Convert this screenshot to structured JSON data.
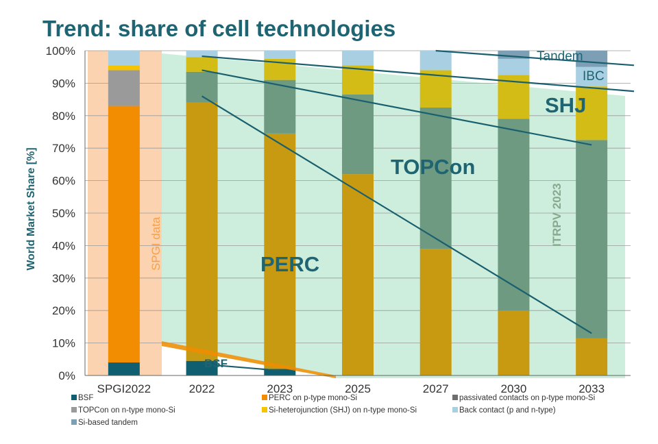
{
  "chart_data": {
    "type": "bar",
    "stacked": true,
    "title": "Trend: share of cell technologies",
    "ylabel": "World Market Share [%]",
    "xlabel": "",
    "ylim": [
      0,
      100
    ],
    "yticks": [
      "0%",
      "10%",
      "20%",
      "30%",
      "40%",
      "50%",
      "60%",
      "70%",
      "80%",
      "90%",
      "100%"
    ],
    "grid": true,
    "legend_position": "bottom",
    "categories": [
      "SPGI2022",
      "2022",
      "2023",
      "2025",
      "2027",
      "2030",
      "2033"
    ],
    "series": [
      {
        "name": "BSF",
        "color": "#0f5f70",
        "values": [
          4,
          4.5,
          2,
          0,
          0,
          0,
          0
        ]
      },
      {
        "name": "PERC on p-type mono-Si",
        "color": "#f28c00",
        "values": [
          79,
          0,
          0,
          0,
          0,
          0,
          0
        ]
      },
      {
        "name": "passivated contacts on p-type mono-Si",
        "color": "#6e6e6e",
        "values": [
          0,
          0,
          0,
          0,
          0,
          0,
          0
        ]
      },
      {
        "name": "TOPCon on n-type mono-Si",
        "color": "#9a9a9a",
        "values": [
          11,
          0,
          0,
          0,
          0,
          0,
          0
        ]
      },
      {
        "name": "Si-heterojunction (SHJ) on n-type mono-Si",
        "color": "#f5c400",
        "values": [
          1.5,
          0,
          0,
          0,
          0,
          0,
          0
        ]
      },
      {
        "name": "Back contact (p and n-type)",
        "color": "#a8cfe2",
        "values": [
          4.5,
          0,
          0,
          0,
          0,
          0,
          0
        ]
      },
      {
        "name": "Si-based tandem",
        "color": "#7c9fb5",
        "values": [
          0,
          0,
          0,
          0,
          0,
          0,
          0
        ]
      }
    ],
    "itrpv_segments": [
      {
        "category": "2022",
        "BSF": 4.5,
        "PERC": 79.5,
        "TOPCon": 9.5,
        "SHJ": 4.5,
        "BC": 2,
        "Tandem": 0
      },
      {
        "category": "2023",
        "BSF": 2,
        "PERC": 72.5,
        "TOPCon": 16.5,
        "SHJ": 6.5,
        "BC": 2.5,
        "Tandem": 0
      },
      {
        "category": "2025",
        "BSF": 0,
        "PERC": 62,
        "TOPCon": 24.5,
        "SHJ": 9,
        "BC": 4.5,
        "Tandem": 0
      },
      {
        "category": "2027",
        "BSF": 0,
        "PERC": 39,
        "TOPCon": 43.5,
        "SHJ": 11.5,
        "BC": 6,
        "Tandem": 0
      },
      {
        "category": "2030",
        "BSF": 0,
        "PERC": 20,
        "TOPCon": 59,
        "SHJ": 13.5,
        "BC": 5,
        "Tandem": 2.5
      },
      {
        "category": "2033",
        "BSF": 0,
        "PERC": 11.5,
        "TOPCon": 61,
        "SHJ": 16.5,
        "BC": 6,
        "Tandem": 5
      }
    ],
    "itrpv_colors": {
      "PERC": "#c89a12",
      "TOPCon": "#6e9a82",
      "SHJ": "#d4bc16",
      "BC": "#a8cfe2",
      "Tandem": "#7c9fb5"
    },
    "annotations": {
      "perc": "PERC",
      "topcon": "TOPCon",
      "shj": "SHJ",
      "ibc": "IBC",
      "tandem": "Tandem",
      "bsf": "BSF",
      "spgi": "SPGI data",
      "itrpv": "ITRPV 2023"
    },
    "trend_lines": [
      {
        "name": "perc-trend",
        "from": [
          "2022",
          86
        ],
        "to": [
          "2033",
          13
        ]
      },
      {
        "name": "topcon-trend",
        "from": [
          "2022",
          94
        ],
        "to": [
          "2033",
          71
        ]
      },
      {
        "name": "shj-trend",
        "from": [
          "2022",
          98.3
        ],
        "to": [
          "2033+",
          87.5
        ]
      },
      {
        "name": "tandem-trend",
        "from": [
          "2027",
          100
        ],
        "to": [
          "2033+",
          95.5
        ]
      },
      {
        "name": "bsf-trend",
        "from": [
          "2022",
          3.5
        ],
        "to": [
          "2023",
          1.5
        ]
      }
    ]
  }
}
